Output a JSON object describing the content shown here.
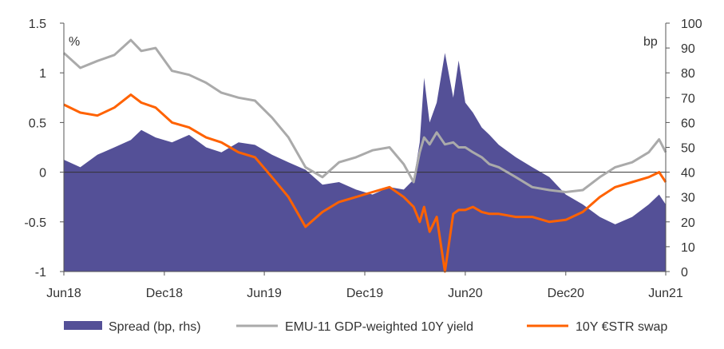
{
  "chart_data": {
    "type": "area",
    "left_unit": "%",
    "right_unit": "bp",
    "x_start": "2018-06-01",
    "x_end": "2021-06-01",
    "x_ticks": [
      "Jun18",
      "Dec18",
      "Jun19",
      "Dec19",
      "Jun20",
      "Dec20",
      "Jun21"
    ],
    "y_left": {
      "min": -1,
      "max": 1.5,
      "ticks": [
        "1.5",
        "1",
        "0.5",
        "0",
        "-0.5",
        "-1"
      ]
    },
    "y_right": {
      "min": 0,
      "max": 100,
      "ticks": [
        "100",
        "90",
        "80",
        "70",
        "60",
        "50",
        "40",
        "30",
        "20",
        "10",
        "0"
      ]
    },
    "grid": false,
    "legend_position": "bottom",
    "colors": {
      "spread": "#545097",
      "yield": "#aaaaaa",
      "swap": "#ff6200"
    },
    "series": [
      {
        "name": "Spread (bp, rhs)",
        "type": "area",
        "axis": "right",
        "x": [
          "2018-06-01",
          "2018-07-01",
          "2018-08-01",
          "2018-09-01",
          "2018-10-01",
          "2018-10-20",
          "2018-11-15",
          "2018-12-15",
          "2019-01-15",
          "2019-02-15",
          "2019-03-15",
          "2019-04-15",
          "2019-05-15",
          "2019-06-15",
          "2019-07-15",
          "2019-08-15",
          "2019-09-15",
          "2019-10-15",
          "2019-11-15",
          "2019-12-15",
          "2020-01-15",
          "2020-02-10",
          "2020-02-28",
          "2020-03-10",
          "2020-03-18",
          "2020-03-28",
          "2020-04-10",
          "2020-04-25",
          "2020-05-10",
          "2020-05-20",
          "2020-06-01",
          "2020-06-15",
          "2020-07-01",
          "2020-07-15",
          "2020-08-01",
          "2020-09-01",
          "2020-10-01",
          "2020-11-01",
          "2020-12-01",
          "2021-01-01",
          "2021-02-01",
          "2021-03-01",
          "2021-04-01",
          "2021-05-01",
          "2021-05-20",
          "2021-06-01"
        ],
        "values": [
          45,
          42,
          47,
          50,
          53,
          57,
          54,
          52,
          55,
          50,
          48,
          52,
          51,
          47,
          44,
          41,
          35,
          36,
          33,
          31,
          34,
          33,
          37,
          52,
          78,
          60,
          68,
          88,
          70,
          85,
          68,
          64,
          58,
          55,
          51,
          46,
          42,
          38,
          31,
          27,
          22,
          19,
          22,
          27,
          31,
          27
        ]
      },
      {
        "name": "EMU-11 GDP-weighted 10Y yield",
        "type": "line",
        "axis": "left",
        "x": [
          "2018-06-01",
          "2018-07-01",
          "2018-08-01",
          "2018-09-01",
          "2018-10-01",
          "2018-10-20",
          "2018-11-15",
          "2018-12-15",
          "2019-01-15",
          "2019-02-15",
          "2019-03-15",
          "2019-04-15",
          "2019-05-15",
          "2019-06-15",
          "2019-07-15",
          "2019-08-15",
          "2019-09-15",
          "2019-10-15",
          "2019-11-15",
          "2019-12-15",
          "2020-01-15",
          "2020-02-10",
          "2020-02-28",
          "2020-03-10",
          "2020-03-18",
          "2020-03-28",
          "2020-04-10",
          "2020-04-25",
          "2020-05-10",
          "2020-05-20",
          "2020-06-01",
          "2020-06-15",
          "2020-07-01",
          "2020-07-15",
          "2020-08-01",
          "2020-09-01",
          "2020-10-01",
          "2020-11-01",
          "2020-12-01",
          "2021-01-01",
          "2021-02-01",
          "2021-03-01",
          "2021-04-01",
          "2021-05-01",
          "2021-05-20",
          "2021-06-01"
        ],
        "values": [
          1.2,
          1.05,
          1.12,
          1.18,
          1.33,
          1.22,
          1.25,
          1.02,
          0.98,
          0.9,
          0.8,
          0.75,
          0.72,
          0.55,
          0.35,
          0.05,
          -0.05,
          0.1,
          0.15,
          0.22,
          0.25,
          0.08,
          -0.1,
          0.2,
          0.35,
          0.28,
          0.4,
          0.28,
          0.3,
          0.25,
          0.25,
          0.2,
          0.15,
          0.08,
          0.05,
          -0.05,
          -0.15,
          -0.18,
          -0.2,
          -0.18,
          -0.05,
          0.05,
          0.1,
          0.2,
          0.33,
          0.2
        ]
      },
      {
        "name": "10Y €STR swap",
        "type": "line",
        "axis": "left",
        "x": [
          "2018-06-01",
          "2018-07-01",
          "2018-08-01",
          "2018-09-01",
          "2018-10-01",
          "2018-10-20",
          "2018-11-15",
          "2018-12-15",
          "2019-01-15",
          "2019-02-15",
          "2019-03-15",
          "2019-04-15",
          "2019-05-15",
          "2019-06-15",
          "2019-07-15",
          "2019-08-15",
          "2019-09-15",
          "2019-10-15",
          "2019-11-15",
          "2019-12-15",
          "2020-01-15",
          "2020-02-10",
          "2020-02-28",
          "2020-03-10",
          "2020-03-18",
          "2020-03-28",
          "2020-04-10",
          "2020-04-25",
          "2020-05-10",
          "2020-05-20",
          "2020-06-01",
          "2020-06-15",
          "2020-07-01",
          "2020-07-15",
          "2020-08-01",
          "2020-09-01",
          "2020-10-01",
          "2020-11-01",
          "2020-12-01",
          "2021-01-01",
          "2021-02-01",
          "2021-03-01",
          "2021-04-01",
          "2021-05-01",
          "2021-05-20",
          "2021-06-01"
        ],
        "values": [
          0.68,
          0.6,
          0.57,
          0.65,
          0.78,
          0.7,
          0.65,
          0.5,
          0.45,
          0.35,
          0.3,
          0.2,
          0.15,
          -0.05,
          -0.25,
          -0.55,
          -0.4,
          -0.3,
          -0.25,
          -0.2,
          -0.15,
          -0.25,
          -0.35,
          -0.5,
          -0.35,
          -0.6,
          -0.45,
          -1.0,
          -0.42,
          -0.38,
          -0.38,
          -0.35,
          -0.4,
          -0.42,
          -0.42,
          -0.45,
          -0.45,
          -0.5,
          -0.48,
          -0.4,
          -0.25,
          -0.15,
          -0.1,
          -0.05,
          0.0,
          -0.1
        ]
      }
    ]
  }
}
